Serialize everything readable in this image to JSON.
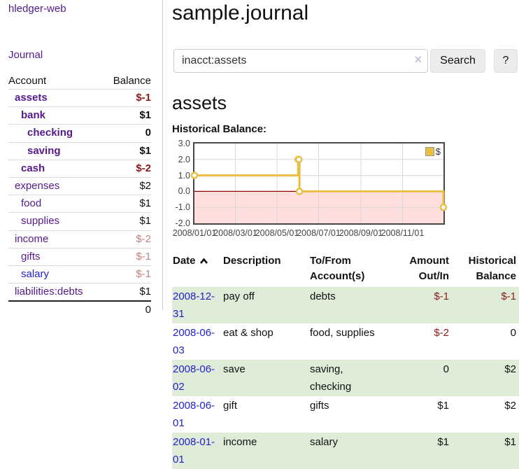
{
  "sidebar": {
    "brand": "hledger-web",
    "nav": {
      "journal": "Journal"
    },
    "table_header": {
      "account": "Account",
      "balance": "Balance"
    },
    "accounts": [
      {
        "name": "assets",
        "depth": 1,
        "bold": true,
        "balance": "$-1",
        "neg": "strong"
      },
      {
        "name": "bank",
        "depth": 2,
        "bold": true,
        "balance": "$1",
        "neg": null
      },
      {
        "name": "checking",
        "depth": 3,
        "bold": true,
        "balance": "0",
        "neg": null
      },
      {
        "name": "saving",
        "depth": 3,
        "bold": true,
        "balance": "$1",
        "neg": null
      },
      {
        "name": "cash",
        "depth": 2,
        "bold": true,
        "balance": "$-2",
        "neg": "strong"
      },
      {
        "name": "expenses",
        "depth": 1,
        "bold": false,
        "balance": "$2",
        "neg": null
      },
      {
        "name": "food",
        "depth": 2,
        "bold": false,
        "balance": "$1",
        "neg": null
      },
      {
        "name": "supplies",
        "depth": 2,
        "bold": false,
        "balance": "$1",
        "neg": null
      },
      {
        "name": "income",
        "depth": 1,
        "bold": false,
        "balance": "$-2",
        "neg": "soft"
      },
      {
        "name": "gifts",
        "depth": 2,
        "bold": false,
        "balance": "$-1",
        "neg": "soft"
      },
      {
        "name": "salary",
        "depth": 2,
        "bold": false,
        "balance": "$-1",
        "neg": "soft",
        "blue_link": true
      },
      {
        "name": "liabilities:debts",
        "depth": 1,
        "bold": false,
        "balance": "$1",
        "neg": null
      }
    ],
    "total": "0"
  },
  "header": {
    "title": "sample.journal"
  },
  "search": {
    "value": "inacct:assets",
    "clear_icon": "×",
    "button_label": "Search",
    "help_label": "?"
  },
  "account_page": {
    "heading": "assets",
    "chart_label": "Historical Balance:"
  },
  "chart_data": {
    "type": "line",
    "title": "Historical Balance",
    "style": "step",
    "x_range": [
      "2008-01-01",
      "2008-12-31"
    ],
    "ylim": [
      -2,
      3
    ],
    "y_ticks": [
      3,
      2,
      1,
      0,
      -1,
      -2
    ],
    "x_tick_labels": [
      "2008/01/01",
      "2008/03/01",
      "2008/05/01",
      "2008/07/01",
      "2008/09/01",
      "2008/11/01"
    ],
    "grid": true,
    "legend_position": "top-right",
    "series": [
      {
        "name": "$",
        "color": "#e9bf45",
        "points": [
          {
            "date": "2008-01-01",
            "value": 1
          },
          {
            "date": "2008-06-01",
            "value": 2
          },
          {
            "date": "2008-06-02",
            "value": 2
          },
          {
            "date": "2008-06-03",
            "value": 0
          },
          {
            "date": "2008-12-31",
            "value": -1
          }
        ]
      }
    ],
    "negative_region_color": "#ffdede",
    "zero_line_color": "#8b0000",
    "gridline_color": "#d8d8d8"
  },
  "register": {
    "columns": {
      "date": "Date",
      "sort_icon": "caret-up-icon",
      "description": "Description",
      "accounts": "To/From Account(s)",
      "amount": "Amount Out/In",
      "balance": "Historical Balance"
    },
    "rows": [
      {
        "date": "2008-12-31",
        "description": "pay off",
        "accounts": "debts",
        "amount": "$-1",
        "amount_neg": true,
        "balance": "$-1",
        "balance_neg": true
      },
      {
        "date": "2008-06-03",
        "description": "eat & shop",
        "accounts": "food, supplies",
        "amount": "$-2",
        "amount_neg": true,
        "balance": "0",
        "balance_neg": false
      },
      {
        "date": "2008-06-02",
        "description": "save",
        "accounts": "saving, checking",
        "amount": "0",
        "amount_neg": false,
        "balance": "$2",
        "balance_neg": false
      },
      {
        "date": "2008-06-01",
        "description": "gift",
        "accounts": "gifts",
        "amount": "$1",
        "amount_neg": false,
        "balance": "$2",
        "balance_neg": false
      },
      {
        "date": "2008-01-01",
        "description": "income",
        "accounts": "salary",
        "amount": "$1",
        "amount_neg": false,
        "balance": "$1",
        "balance_neg": false
      }
    ]
  },
  "colors": {
    "link_purple": "#551a8b",
    "link_blue": "#2222cc",
    "negative_strong": "#8b1a1a",
    "negative_soft": "#c28181",
    "row_stripe_green": "#dfecd8",
    "series_gold": "#e9bf45"
  }
}
